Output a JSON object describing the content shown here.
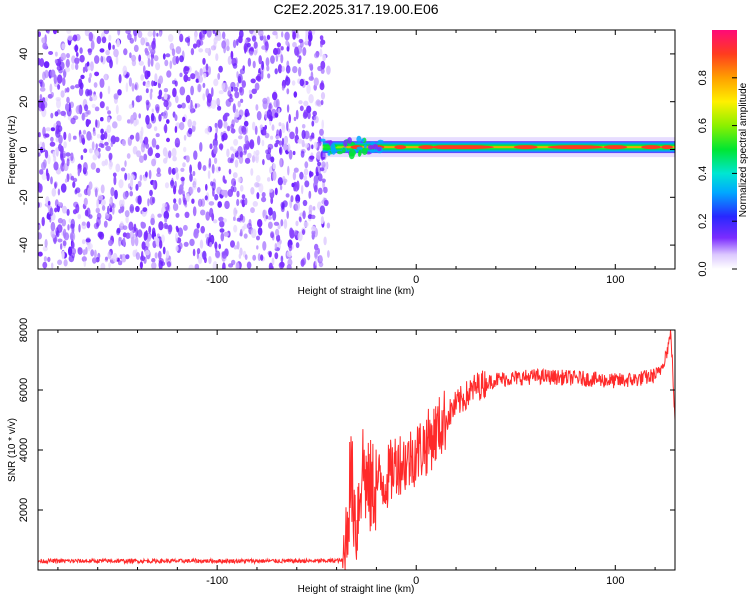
{
  "title": "C2E2.2025.317.19.00.E06",
  "colors": {
    "snr_line": "#ff2a2a",
    "frame": "#000000",
    "background": "#ffffff"
  },
  "chart_data": [
    {
      "type": "heatmap",
      "xlabel": "Height of straight line (km)",
      "ylabel": "Frequency (Hz)",
      "xlim": [
        -190,
        130
      ],
      "ylim": [
        -50,
        50
      ],
      "xticks": [
        -100,
        0,
        100
      ],
      "yticks": [
        -40,
        -20,
        0,
        20,
        40
      ],
      "noise_region_x": [
        -190,
        -44
      ],
      "signal_band_center_hz": 1,
      "signal_band_halfwidth_hz": 2.5,
      "colorbar": {
        "label": "Normalized spectral amplitude",
        "range": [
          0,
          1
        ],
        "ticks": [
          0.0,
          0.2,
          0.4,
          0.6,
          0.8
        ],
        "tick_labels": [
          "0.0",
          "0.2",
          "0.4",
          "0.6",
          "0.8"
        ]
      }
    },
    {
      "type": "line",
      "xlabel": "Height of straight line (km)",
      "ylabel": "SNR (10 * v/v)",
      "xlim": [
        -190,
        130
      ],
      "ylim": [
        0,
        8000
      ],
      "xticks": [
        -100,
        0,
        100
      ],
      "yticks": [
        2000,
        4000,
        6000,
        8000
      ],
      "series": [
        {
          "name": "SNR",
          "x": [
            -190,
            -150,
            -100,
            -50,
            -36,
            -33,
            -30,
            -27,
            -24,
            -20,
            -15,
            -10,
            -5,
            0,
            5,
            10,
            20,
            30,
            40,
            60,
            80,
            100,
            110,
            118,
            122,
            126,
            128,
            130
          ],
          "y": [
            300,
            300,
            300,
            300,
            320,
            3200,
            1500,
            3600,
            2600,
            2900,
            3000,
            3600,
            3600,
            3900,
            4200,
            4600,
            5500,
            6100,
            6350,
            6450,
            6400,
            6300,
            6350,
            6450,
            6550,
            7300,
            7900,
            4900
          ]
        }
      ]
    }
  ]
}
